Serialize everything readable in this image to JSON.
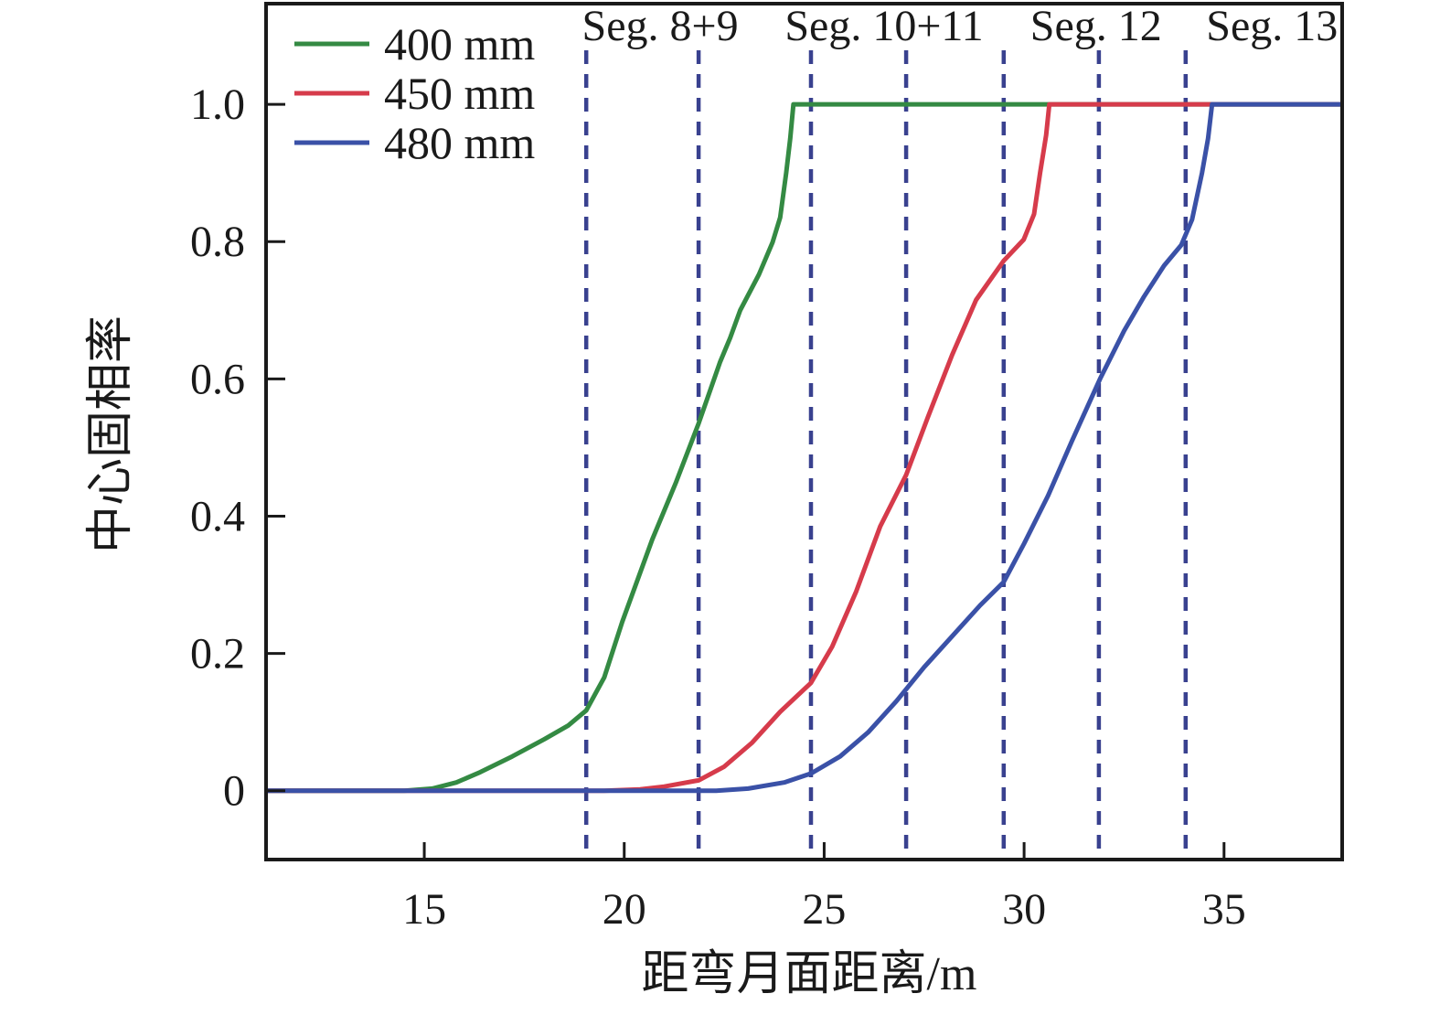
{
  "chart_data": {
    "type": "line",
    "title": "",
    "xlabel": "距弯月面距离/m",
    "ylabel": "中心固相率",
    "xlim": [
      11.02,
      38.0
    ],
    "ylim": [
      -0.103,
      1.148
    ],
    "grid": false,
    "x_ticks": [
      15,
      20,
      25,
      30,
      35
    ],
    "x_tick_labels": [
      "15",
      "20",
      "25",
      "30",
      "35"
    ],
    "y_ticks": [
      0,
      0.2,
      0.4,
      0.6,
      0.8,
      1.0
    ],
    "y_tick_labels": [
      "0",
      "0.2",
      "0.4",
      "0.6",
      "0.8",
      "1.0"
    ],
    "legend_position": "upper-left-inside",
    "axis_color": "#1a1a1a",
    "segment_boundary_color": "#39418f",
    "segment_boundaries_x": [
      19.05,
      21.86,
      24.67,
      27.05,
      29.49,
      31.87,
      34.04
    ],
    "segment_labels": [
      {
        "text": "Seg. 8+9",
        "x": 20.9
      },
      {
        "text": "Seg. 10+11",
        "x": 26.5
      },
      {
        "text": "Seg. 12",
        "x": 31.8
      },
      {
        "text": "Seg. 13",
        "x": 36.2
      }
    ],
    "series": [
      {
        "name": "400 mm",
        "color": "#348a43",
        "points": [
          [
            11.02,
            0
          ],
          [
            13.0,
            0
          ],
          [
            14.5,
            0
          ],
          [
            15.2,
            0.003
          ],
          [
            15.8,
            0.012
          ],
          [
            16.4,
            0.027
          ],
          [
            17.2,
            0.05
          ],
          [
            18.0,
            0.075
          ],
          [
            18.6,
            0.095
          ],
          [
            19.05,
            0.117
          ],
          [
            19.5,
            0.165
          ],
          [
            19.95,
            0.246
          ],
          [
            20.7,
            0.366
          ],
          [
            21.3,
            0.45
          ],
          [
            21.86,
            0.535
          ],
          [
            22.4,
            0.625
          ],
          [
            22.65,
            0.66
          ],
          [
            22.9,
            0.7
          ],
          [
            23.37,
            0.752
          ],
          [
            23.71,
            0.799
          ],
          [
            23.9,
            0.835
          ],
          [
            24.05,
            0.9
          ],
          [
            24.15,
            0.95
          ],
          [
            24.23,
            1.0
          ],
          [
            38.0,
            1.0
          ]
        ]
      },
      {
        "name": "450 mm",
        "color": "#d63b4b",
        "points": [
          [
            11.02,
            0
          ],
          [
            19.5,
            0
          ],
          [
            20.4,
            0.002
          ],
          [
            21.0,
            0.006
          ],
          [
            21.86,
            0.015
          ],
          [
            22.5,
            0.035
          ],
          [
            23.2,
            0.07
          ],
          [
            23.9,
            0.115
          ],
          [
            24.67,
            0.157
          ],
          [
            25.2,
            0.21
          ],
          [
            25.8,
            0.29
          ],
          [
            26.4,
            0.385
          ],
          [
            27.05,
            0.46
          ],
          [
            27.6,
            0.545
          ],
          [
            28.2,
            0.635
          ],
          [
            28.8,
            0.715
          ],
          [
            29.49,
            0.772
          ],
          [
            29.99,
            0.803
          ],
          [
            30.25,
            0.84
          ],
          [
            30.4,
            0.9
          ],
          [
            30.55,
            0.955
          ],
          [
            30.63,
            1.0
          ],
          [
            38.0,
            1.0
          ]
        ]
      },
      {
        "name": "480 mm",
        "color": "#3a51a7",
        "points": [
          [
            11.02,
            0
          ],
          [
            22.3,
            0
          ],
          [
            23.1,
            0.003
          ],
          [
            24.0,
            0.012
          ],
          [
            24.67,
            0.025
          ],
          [
            25.4,
            0.05
          ],
          [
            26.1,
            0.085
          ],
          [
            26.8,
            0.13
          ],
          [
            27.5,
            0.18
          ],
          [
            28.2,
            0.225
          ],
          [
            28.9,
            0.27
          ],
          [
            29.49,
            0.304
          ],
          [
            30.0,
            0.36
          ],
          [
            30.6,
            0.43
          ],
          [
            31.2,
            0.51
          ],
          [
            31.9,
            0.6
          ],
          [
            32.5,
            0.67
          ],
          [
            33.0,
            0.72
          ],
          [
            33.5,
            0.765
          ],
          [
            33.93,
            0.795
          ],
          [
            34.2,
            0.832
          ],
          [
            34.45,
            0.9
          ],
          [
            34.6,
            0.95
          ],
          [
            34.7,
            1.0
          ],
          [
            38.0,
            1.0
          ]
        ]
      }
    ]
  }
}
